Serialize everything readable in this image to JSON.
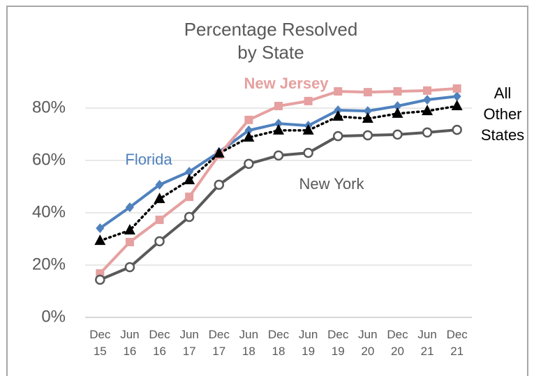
{
  "chart_data": {
    "type": "line",
    "title": [
      "Percentage Resolved",
      "by State"
    ],
    "categories": [
      "Dec 15",
      "Jun 16",
      "Dec 16",
      "Jun 17",
      "Dec 17",
      "Jun 18",
      "Dec 18",
      "Jun 19",
      "Dec 19",
      "Jun 20",
      "Dec 20",
      "Jun 21",
      "Dec 21"
    ],
    "series": [
      {
        "name": "Florida",
        "color": "#4f81bd",
        "marker": "diamond",
        "values": [
          34.1,
          42.1,
          50.7,
          55.7,
          63.2,
          71.5,
          74.1,
          73.3,
          79.2,
          78.9,
          80.8,
          83.2,
          84.5
        ]
      },
      {
        "name": "New Jersey",
        "color": "#e6a0a0",
        "marker": "square",
        "values": [
          16.8,
          28.8,
          37.3,
          46.1,
          62.1,
          75.5,
          80.8,
          82.7,
          86.4,
          86.1,
          86.4,
          86.7,
          87.5
        ]
      },
      {
        "name": "New York",
        "color": "#595959",
        "marker": "circle",
        "values": [
          14.4,
          19.2,
          29.1,
          38.4,
          50.7,
          58.7,
          61.9,
          62.9,
          69.3,
          69.6,
          69.9,
          70.7,
          71.7
        ]
      },
      {
        "name": "All Other States",
        "color": "#000000",
        "marker": "triangle",
        "dashed": true,
        "values": [
          29.3,
          33.3,
          45.3,
          52.5,
          62.7,
          68.8,
          71.5,
          71.5,
          76.8,
          76.0,
          77.9,
          78.9,
          80.8
        ]
      }
    ],
    "ylim": [
      0,
      90
    ],
    "yticks": [
      {
        "value": 0,
        "label": "0%"
      },
      {
        "value": 20,
        "label": "20%"
      },
      {
        "value": 40,
        "label": "40%"
      },
      {
        "value": 60,
        "label": "60%"
      },
      {
        "value": 80,
        "label": "80%"
      }
    ],
    "grid": true
  }
}
